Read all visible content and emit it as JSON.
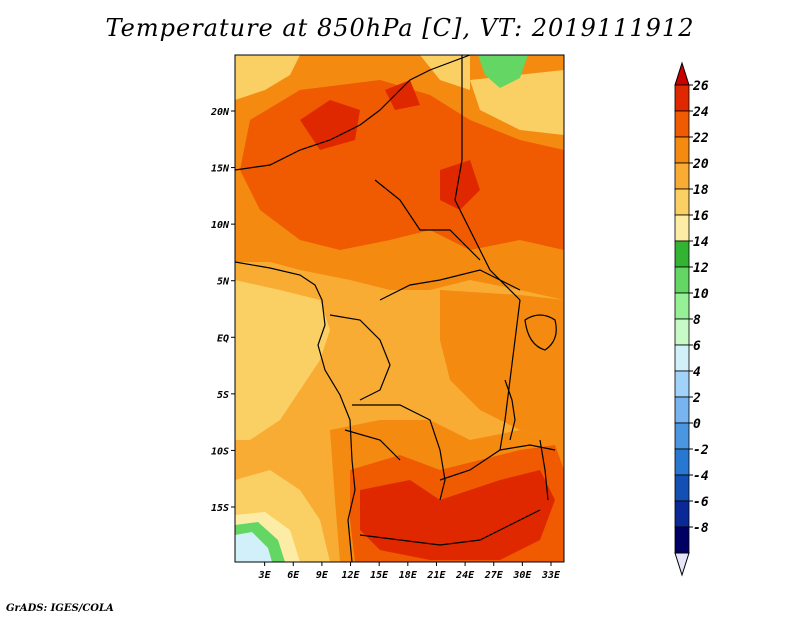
{
  "title": "Temperature at 850hPa [C], VT: 2019111912",
  "credit": "GrADS: IGES/COLA",
  "map": {
    "region": "Central and Southern Africa",
    "variable": "Temperature at 850hPa",
    "units": "C",
    "valid_time": "2019111912",
    "lon_range": [
      0,
      34
    ],
    "lat_range": [
      -20,
      24
    ],
    "lat_ticks": [
      {
        "value": 20,
        "label": "20N"
      },
      {
        "value": 15,
        "label": "15N"
      },
      {
        "value": 10,
        "label": "10N"
      },
      {
        "value": 5,
        "label": "5N"
      },
      {
        "value": 0,
        "label": "EQ"
      },
      {
        "value": -5,
        "label": "5S"
      },
      {
        "value": -10,
        "label": "10S"
      },
      {
        "value": -15,
        "label": "15S"
      }
    ],
    "lon_ticks": [
      {
        "value": 3,
        "label": "3E"
      },
      {
        "value": 6,
        "label": "6E"
      },
      {
        "value": 9,
        "label": "9E"
      },
      {
        "value": 12,
        "label": "12E"
      },
      {
        "value": 15,
        "label": "15E"
      },
      {
        "value": 18,
        "label": "18E"
      },
      {
        "value": 21,
        "label": "21E"
      },
      {
        "value": 24,
        "label": "24E"
      },
      {
        "value": 27,
        "label": "27E"
      },
      {
        "value": 30,
        "label": "30E"
      },
      {
        "value": 33,
        "label": "33E"
      }
    ]
  },
  "colorbar": {
    "labels": [
      "26",
      "24",
      "22",
      "20",
      "18",
      "16",
      "14",
      "12",
      "10",
      "8",
      "6",
      "4",
      "2",
      "0",
      "-2",
      "-4",
      "-6",
      "-8"
    ],
    "colors": [
      "#c80000",
      "#e02800",
      "#f05a00",
      "#f58a10",
      "#f8ac34",
      "#fad064",
      "#fdeca6",
      "#32b432",
      "#64d664",
      "#96f096",
      "#c8fac8",
      "#d2f0fa",
      "#a0d2fa",
      "#78b4f0",
      "#4b96e1",
      "#2878d2",
      "#1450b4",
      "#0a2896",
      "#000064",
      "#e6e6fa"
    ]
  },
  "colors": {
    "t24": "#e02800",
    "t22": "#f05a00",
    "t20": "#f58a10",
    "t18": "#f8ac34",
    "t16": "#fad064",
    "t14": "#fdeca6",
    "t10": "#64d664",
    "t8": "#c8fac8",
    "t6": "#d2f0fa"
  }
}
